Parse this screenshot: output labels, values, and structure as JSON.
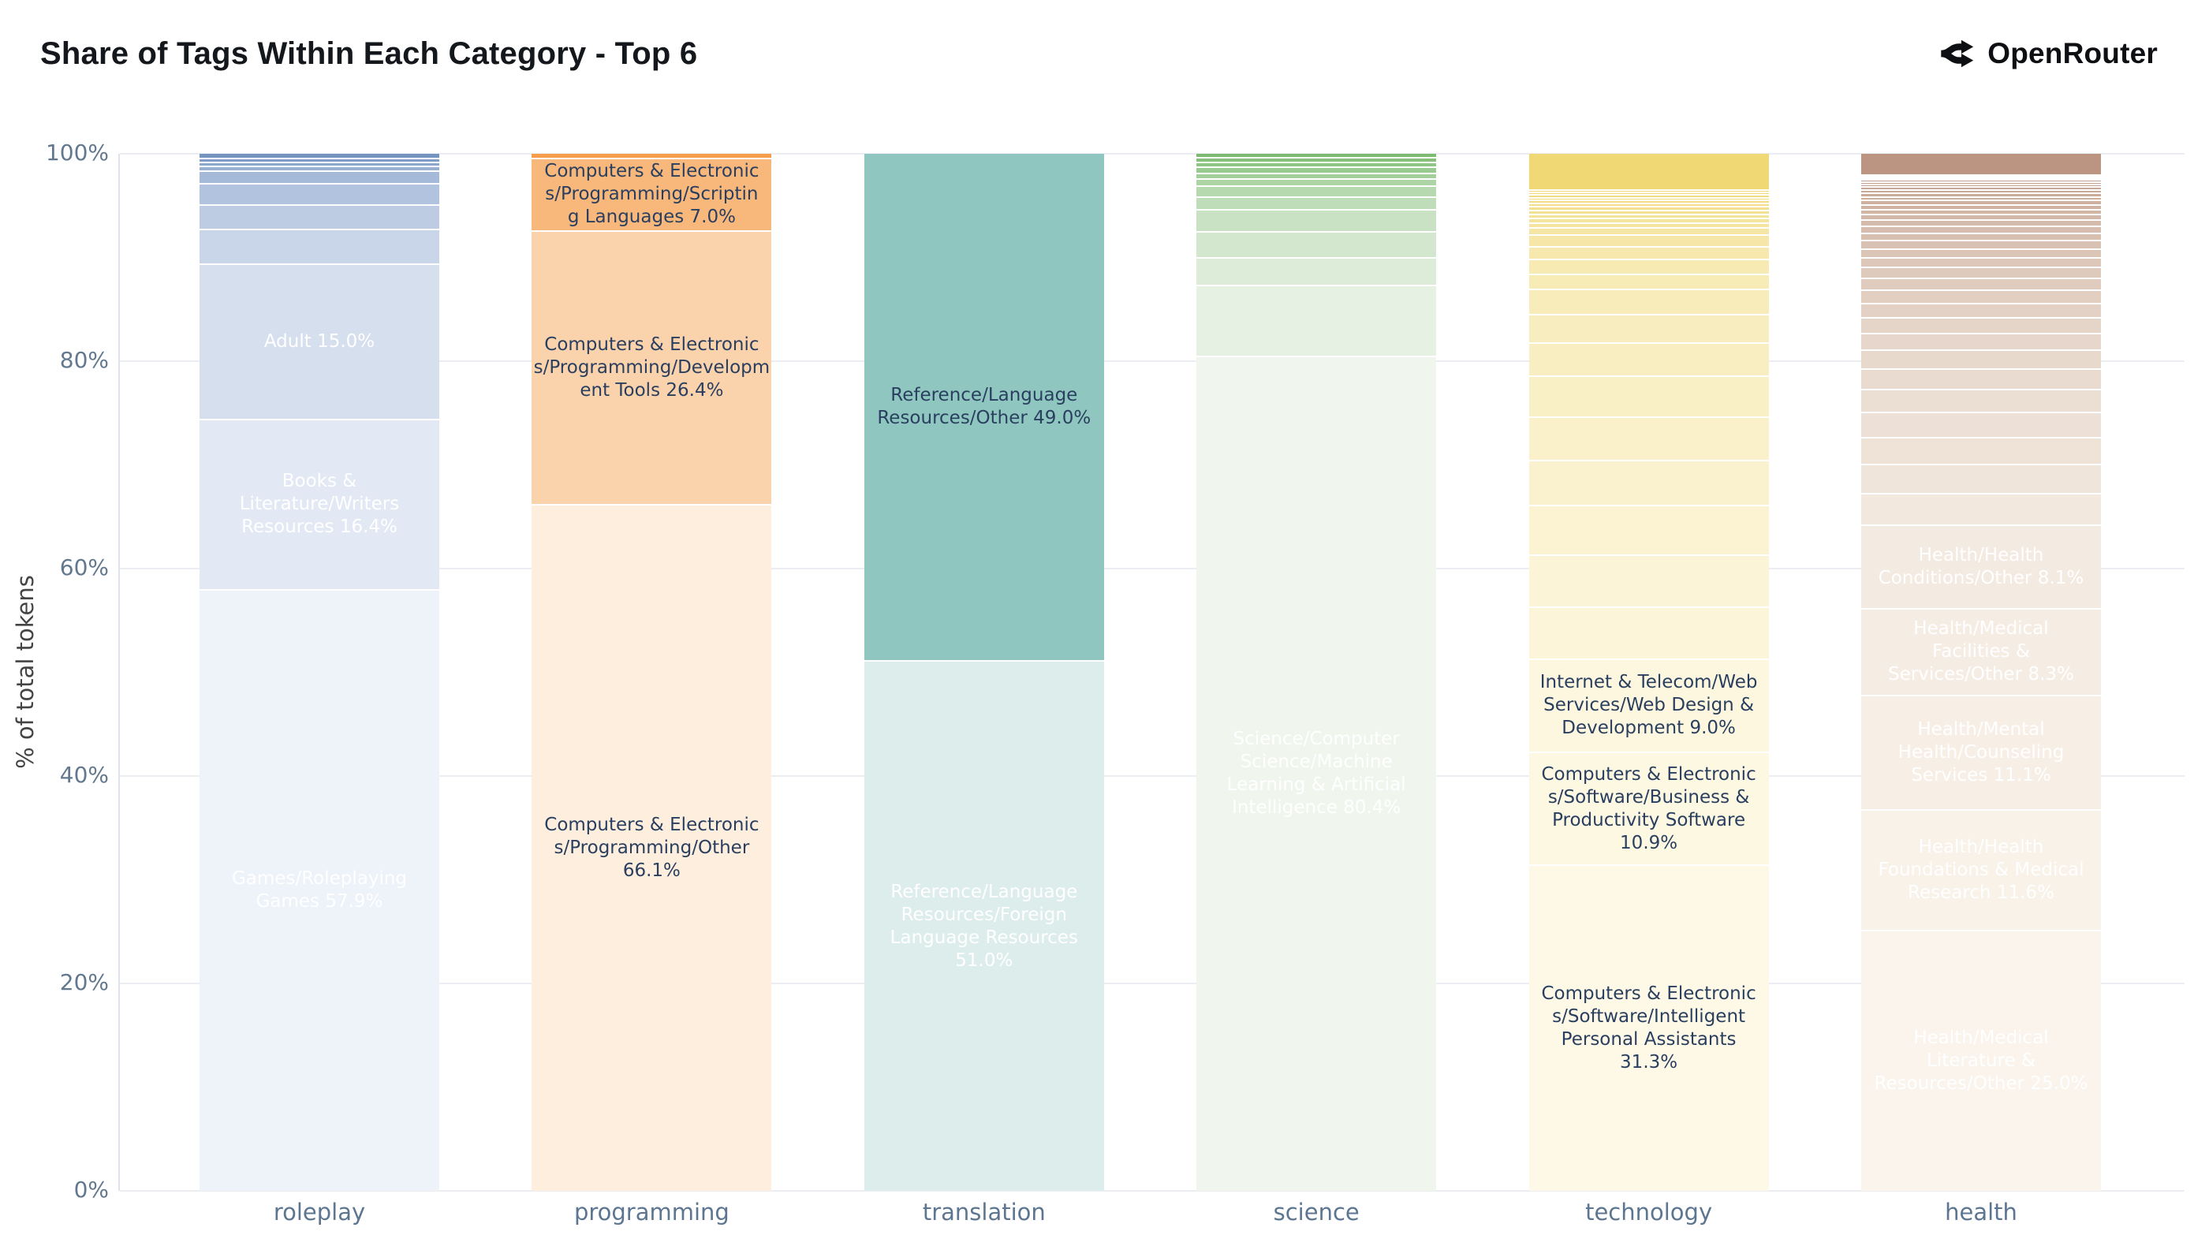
{
  "header": {
    "title": "Share of Tags Within Each Category - Top 6",
    "brand": "OpenRouter"
  },
  "y_axis": {
    "title": "% of total tokens",
    "ticks": [
      {
        "value": 0,
        "label": "0%"
      },
      {
        "value": 20,
        "label": "20%"
      },
      {
        "value": 40,
        "label": "40%"
      },
      {
        "value": 60,
        "label": "60%"
      },
      {
        "value": 80,
        "label": "80%"
      },
      {
        "value": 100,
        "label": "100%"
      }
    ]
  },
  "colors": {
    "background": "#ffffff",
    "grid": "#ebedf2",
    "axis_line": "#dfe3ec",
    "tick_text": "#62788f",
    "category_text": "#5c7590",
    "axis_title_text": "#444444",
    "title_text": "#14171c",
    "brand_text": "#0d0f12",
    "segment_divider": "#ffffff",
    "dark_label": "#2a3f5f",
    "light_label": "#ffffff"
  },
  "chart_data": {
    "type": "bar",
    "stacked": true,
    "normalized_percent": true,
    "grid": "horizontal",
    "legend": "none",
    "title": "Share of Tags Within Each Category - Top 6",
    "xlabel": "",
    "ylabel": "% of total tokens",
    "ylim": [
      0,
      100
    ],
    "categories": [
      "roleplay",
      "programming",
      "translation",
      "science",
      "technology",
      "health"
    ],
    "note": "Segments listed top-to-bottom per bar; unlabeled values are small tags estimated from pixel heights.",
    "bars": [
      {
        "category": "roleplay",
        "color_bottom": "#7494c2",
        "color_top": "#eef2f9",
        "segments": [
          {
            "value": 0.55
          },
          {
            "value": 0.38
          },
          {
            "value": 0.4
          },
          {
            "value": 0.42
          },
          {
            "value": 1.25
          },
          {
            "value": 2.0
          },
          {
            "value": 2.35
          },
          {
            "value": 3.35
          },
          {
            "value": 15.0,
            "label": "Adult 15.0%",
            "label_color": "#ffffff"
          },
          {
            "value": 16.4,
            "label": "Books &\nLiterature/Writers\nResources 16.4%",
            "label_color": "#ffffff"
          },
          {
            "value": 57.9,
            "label": "Games/Roleplaying\nGames 57.9%",
            "label_color": "#ffffff"
          }
        ]
      },
      {
        "category": "programming",
        "color_bottom": "#f59d4b",
        "color_top": "#fdeedd",
        "segments": [
          {
            "value": 0.5
          },
          {
            "value": 7.0,
            "label": "Computers & Electronic\ns/Programming/Scriptin\ng Languages 7.0%",
            "label_color": "#2a3f5f"
          },
          {
            "value": 26.4,
            "label": "Computers & Electronic\ns/Programming/Developm\nent Tools 26.4%",
            "label_color": "#2a3f5f"
          },
          {
            "value": 66.1,
            "label": "Computers & Electronic\ns/Programming/Other\n66.1%",
            "label_color": "#2a3f5f"
          }
        ]
      },
      {
        "category": "translation",
        "color_bottom": "#8fc7c0",
        "color_top": "#ddedeb",
        "segments": [
          {
            "value": 49.0,
            "label": "Reference/Language\nResources/Other 49.0%",
            "label_color": "#2a3f5f"
          },
          {
            "value": 51.0,
            "label": "Reference/Language\nResources/Foreign\nLanguage Resources\n51.0%",
            "label_color": "#ffffff"
          }
        ]
      },
      {
        "category": "science",
        "color_bottom": "#7cbb70",
        "color_top": "#f0f6ee",
        "segments": [
          {
            "value": 0.45
          },
          {
            "value": 0.45
          },
          {
            "value": 0.5
          },
          {
            "value": 0.55
          },
          {
            "value": 0.6
          },
          {
            "value": 0.65
          },
          {
            "value": 1.1
          },
          {
            "value": 1.15
          },
          {
            "value": 2.15
          },
          {
            "value": 2.55
          },
          {
            "value": 2.65
          },
          {
            "value": 6.8
          },
          {
            "value": 80.4,
            "label": "Science/Computer\nScience/Machine\nLearning & Artificial\nIntelligence 80.4%",
            "label_color": "#ffffff"
          }
        ]
      },
      {
        "category": "technology",
        "color_bottom": "#f0d875",
        "color_top": "#fdf9e6",
        "segments": [
          {
            "value": 3.6
          },
          {
            "value": 0.2
          },
          {
            "value": 0.25
          },
          {
            "value": 0.25
          },
          {
            "value": 0.3
          },
          {
            "value": 0.3
          },
          {
            "value": 0.3
          },
          {
            "value": 0.35
          },
          {
            "value": 0.35
          },
          {
            "value": 0.4
          },
          {
            "value": 0.45
          },
          {
            "value": 0.5
          },
          {
            "value": 0.65
          },
          {
            "value": 1.15
          },
          {
            "value": 1.25
          },
          {
            "value": 1.4
          },
          {
            "value": 1.5
          },
          {
            "value": 2.4
          },
          {
            "value": 2.7
          },
          {
            "value": 3.2
          },
          {
            "value": 4.0
          },
          {
            "value": 4.2
          },
          {
            "value": 4.3
          },
          {
            "value": 4.8
          },
          {
            "value": 5.0
          },
          {
            "value": 5.0
          },
          {
            "value": 9.0,
            "label": "Internet & Telecom/Web\nServices/Web Design &\nDevelopment 9.0%",
            "label_color": "#2a3f5f"
          },
          {
            "value": 10.9,
            "label": "Computers & Electronic\ns/Software/Business &\nProductivity Software\n10.9%",
            "label_color": "#2a3f5f"
          },
          {
            "value": 31.3,
            "label": "Computers & Electronic\ns/Software/Intelligent\nPersonal Assistants\n31.3%",
            "label_color": "#2a3f5f"
          }
        ]
      },
      {
        "category": "health",
        "color_bottom": "#bc9582",
        "color_top": "#faf4ec",
        "segments": [
          {
            "value": 2.1
          },
          {
            "value": 0.15
          },
          {
            "value": 0.15
          },
          {
            "value": 0.2
          },
          {
            "value": 0.2
          },
          {
            "value": 0.25
          },
          {
            "value": 0.25
          },
          {
            "value": 0.3
          },
          {
            "value": 0.3
          },
          {
            "value": 0.35
          },
          {
            "value": 0.35
          },
          {
            "value": 0.4
          },
          {
            "value": 0.45
          },
          {
            "value": 0.5
          },
          {
            "value": 0.55
          },
          {
            "value": 0.6
          },
          {
            "value": 0.65
          },
          {
            "value": 0.7
          },
          {
            "value": 0.8
          },
          {
            "value": 0.85
          },
          {
            "value": 0.95
          },
          {
            "value": 1.05
          },
          {
            "value": 1.15
          },
          {
            "value": 1.25
          },
          {
            "value": 1.4
          },
          {
            "value": 1.5
          },
          {
            "value": 1.65
          },
          {
            "value": 1.8
          },
          {
            "value": 2.0
          },
          {
            "value": 2.2
          },
          {
            "value": 2.4
          },
          {
            "value": 2.6
          },
          {
            "value": 2.85
          },
          {
            "value": 3.0
          },
          {
            "value": 8.1,
            "label": "Health/Health\nConditions/Other 8.1%",
            "label_color": "#ffffff"
          },
          {
            "value": 8.3,
            "label": "Health/Medical\nFacilities &\nServices/Other 8.3%",
            "label_color": "#ffffff"
          },
          {
            "value": 11.1,
            "label": "Health/Mental\nHealth/Counseling\nServices 11.1%",
            "label_color": "#ffffff"
          },
          {
            "value": 11.6,
            "label": "Health/Health\nFoundations & Medical\nResearch 11.6%",
            "label_color": "#ffffff"
          },
          {
            "value": 25.0,
            "label": "Health/Medical\nLiterature &\nResources/Other 25.0%",
            "label_color": "#ffffff"
          }
        ]
      }
    ]
  }
}
